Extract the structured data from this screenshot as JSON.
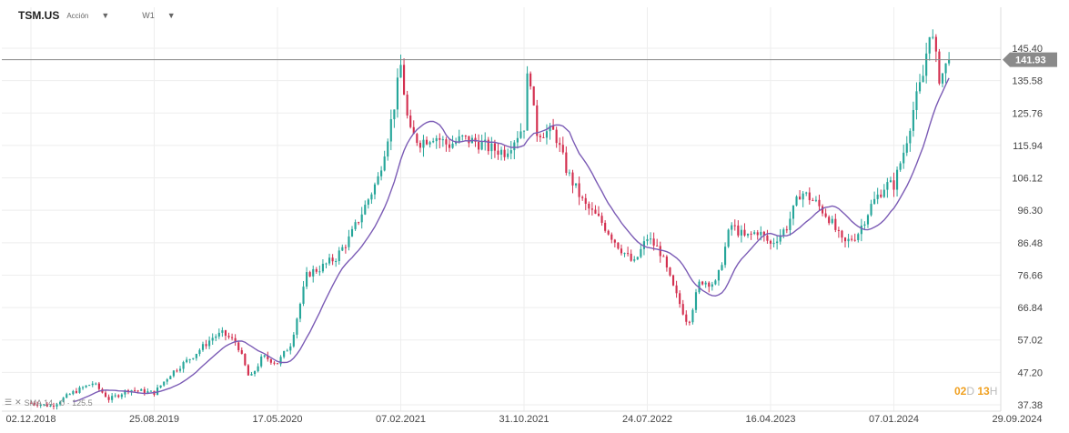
{
  "header": {
    "symbol": "TSM.US",
    "asset_type": "Acción",
    "timeframe": "W1"
  },
  "indicator_legend": {
    "icon_menu": "menu-icon",
    "icon_close": "close-icon",
    "label": "SMA 14 · 0 · 125.5"
  },
  "timer": {
    "days": "02",
    "days_unit": "D",
    "hours": "13",
    "hours_unit": "H"
  },
  "colors": {
    "up": "#26a69a",
    "down": "#d32f4f",
    "sma": "#7b5bb5",
    "price_line": "#888888",
    "price_tag": "#8a8a8a"
  },
  "chart_data": {
    "type": "candlestick",
    "y_axis_ticks": [
      145.4,
      135.58,
      125.76,
      115.94,
      106.12,
      96.3,
      86.48,
      76.66,
      66.84,
      57.02,
      47.2,
      37.38
    ],
    "x_axis_ticks": [
      "02.12.2018",
      "25.08.2019",
      "17.05.2020",
      "07.02.2021",
      "31.10.2021",
      "24.07.2022",
      "16.04.2023",
      "07.01.2024",
      "29.09.2024"
    ],
    "x_range": [
      "2018-12-02",
      "2024-09-29"
    ],
    "current_price": 141.93,
    "grid": true,
    "close_series": [
      [
        "2018-12-02",
        38
      ],
      [
        "2019-01-15",
        37
      ],
      [
        "2019-03-01",
        41
      ],
      [
        "2019-04-15",
        44
      ],
      [
        "2019-05-20",
        39
      ],
      [
        "2019-07-01",
        42
      ],
      [
        "2019-08-25",
        41
      ],
      [
        "2019-10-01",
        47
      ],
      [
        "2019-11-15",
        52
      ],
      [
        "2019-12-31",
        58
      ],
      [
        "2020-01-20",
        59
      ],
      [
        "2020-02-20",
        56
      ],
      [
        "2020-03-18",
        45
      ],
      [
        "2020-04-15",
        52
      ],
      [
        "2020-05-17",
        50
      ],
      [
        "2020-06-15",
        56
      ],
      [
        "2020-07-20",
        77
      ],
      [
        "2020-08-20",
        79
      ],
      [
        "2020-09-20",
        82
      ],
      [
        "2020-10-20",
        88
      ],
      [
        "2020-11-20",
        97
      ],
      [
        "2020-12-20",
        106
      ],
      [
        "2021-01-20",
        125
      ],
      [
        "2021-02-07",
        140
      ],
      [
        "2021-02-25",
        120
      ],
      [
        "2021-03-20",
        117
      ],
      [
        "2021-04-20",
        119
      ],
      [
        "2021-05-20",
        116
      ],
      [
        "2021-06-20",
        118
      ],
      [
        "2021-07-20",
        117
      ],
      [
        "2021-08-20",
        115
      ],
      [
        "2021-09-20",
        114
      ],
      [
        "2021-10-31",
        122
      ],
      [
        "2021-11-10",
        142
      ],
      [
        "2021-11-25",
        120
      ],
      [
        "2022-01-05",
        120
      ],
      [
        "2022-02-01",
        108
      ],
      [
        "2022-03-10",
        98
      ],
      [
        "2022-04-15",
        93
      ],
      [
        "2022-05-20",
        86
      ],
      [
        "2022-06-25",
        80
      ],
      [
        "2022-07-24",
        88
      ],
      [
        "2022-08-20",
        84
      ],
      [
        "2022-09-20",
        72
      ],
      [
        "2022-10-20",
        62
      ],
      [
        "2022-11-15",
        75
      ],
      [
        "2022-12-20",
        74
      ],
      [
        "2023-01-20",
        92
      ],
      [
        "2023-02-20",
        88
      ],
      [
        "2023-03-20",
        90
      ],
      [
        "2023-04-16",
        86
      ],
      [
        "2023-05-20",
        91
      ],
      [
        "2023-06-20",
        102
      ],
      [
        "2023-07-20",
        99
      ],
      [
        "2023-08-20",
        94
      ],
      [
        "2023-09-20",
        86
      ],
      [
        "2023-10-20",
        89
      ],
      [
        "2023-11-20",
        98
      ],
      [
        "2023-12-20",
        104
      ],
      [
        "2024-01-07",
        104
      ],
      [
        "2024-01-30",
        115
      ],
      [
        "2024-02-20",
        128
      ],
      [
        "2024-03-10",
        137
      ],
      [
        "2024-03-25",
        152
      ],
      [
        "2024-04-15",
        136
      ],
      [
        "2024-05-05",
        141.93
      ]
    ],
    "sma_label": "SMA 14"
  }
}
